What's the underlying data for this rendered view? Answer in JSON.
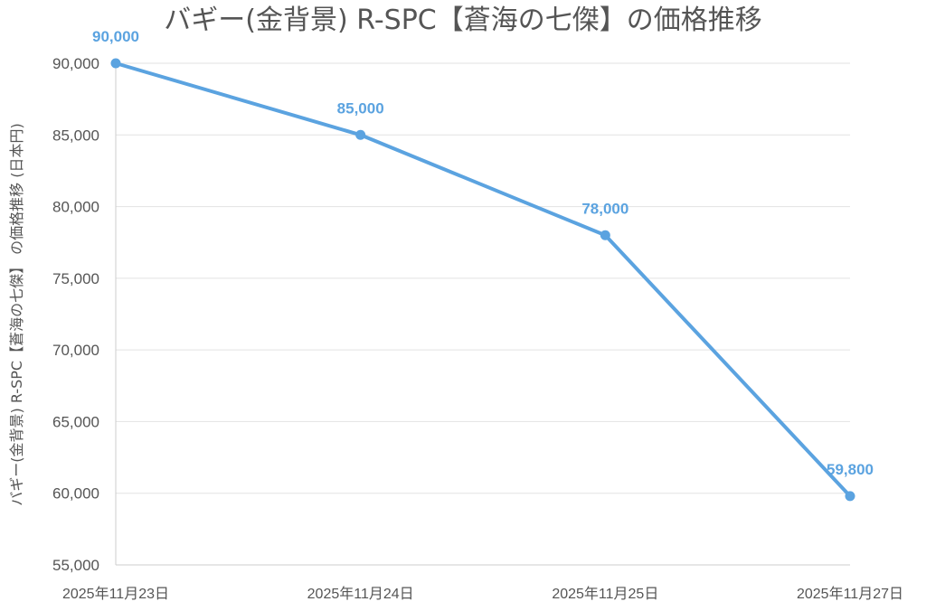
{
  "chart_data": {
    "type": "line",
    "title": "バギー(金背景) R-SPC【蒼海の七傑】の価格推移",
    "xlabel": "",
    "ylabel": "バギー(金背景) R-SPC【蒼海の七傑】 の価格推移 (日本円)",
    "categories": [
      "2025年11月23日",
      "2025年11月24日",
      "2025年11月25日",
      "2025年11月27日"
    ],
    "series": [
      {
        "values": [
          90000,
          85000,
          78000,
          59800
        ],
        "data_labels": [
          "90,000",
          "85,000",
          "78,000",
          "59,800"
        ],
        "color": "#5ba3e0"
      }
    ],
    "ylim": [
      55000,
      90000
    ],
    "yticks": [
      "90,000",
      "85,000",
      "80,000",
      "75,000",
      "70,000",
      "65,000",
      "60,000",
      "55,000"
    ],
    "ytick_values": [
      90000,
      85000,
      80000,
      75000,
      70000,
      65000,
      60000,
      55000
    ],
    "grid": true,
    "legend": "none"
  }
}
